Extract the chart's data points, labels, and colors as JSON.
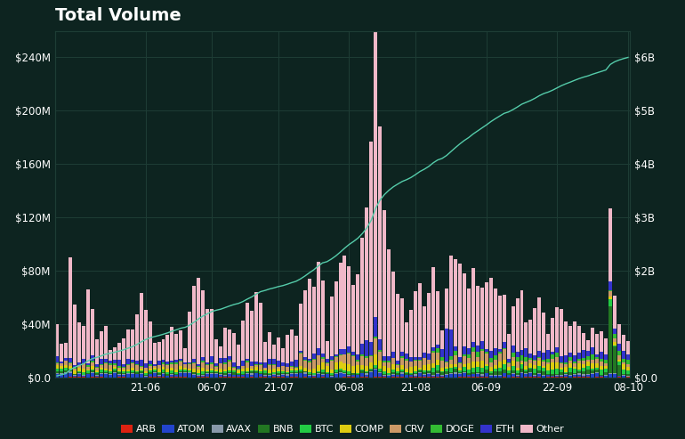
{
  "title": "Total Volume",
  "background_color": "#0d2420",
  "plot_bg_color": "#0d2420",
  "grid_color": "#1e3d35",
  "text_color": "#ffffff",
  "title_fontsize": 14,
  "xlabel_ticks": [
    "21-06",
    "06-07",
    "21-07",
    "06-08",
    "21-08",
    "06-09",
    "22-09",
    "08-10"
  ],
  "yleft_max": 260000000,
  "yright_max": 6500000000,
  "series_colors": {
    "ARB": "#dd2211",
    "ATOM": "#2244cc",
    "AVAX": "#8899aa",
    "BNB": "#227722",
    "BTC": "#22cc44",
    "COMP": "#ddcc11",
    "CRV": "#cc9966",
    "DOGE": "#33bb33",
    "ETH": "#3333cc",
    "Other": "#f0b8c8"
  },
  "cumulative_color": "#55ccaa",
  "legend_fontsize": 8.0,
  "bar_width": 0.8
}
